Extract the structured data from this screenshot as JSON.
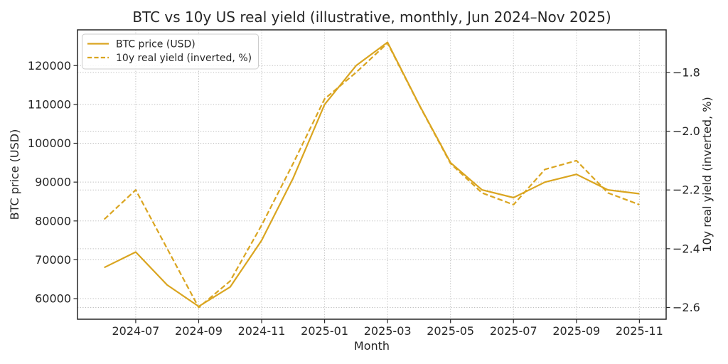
{
  "figure": {
    "title": "BTC vs 10y US real yield (illustrative, monthly, Jun 2024–Nov 2025)"
  },
  "chart_data": {
    "type": "line",
    "title": "BTC vs 10y US real yield (illustrative, monthly, Jun 2024–Nov 2025)",
    "xlabel": "Month",
    "x": [
      "2024-06",
      "2024-07",
      "2024-08",
      "2024-09",
      "2024-10",
      "2024-11",
      "2024-12",
      "2025-01",
      "2025-02",
      "2025-03",
      "2025-04",
      "2025-05",
      "2025-06",
      "2025-07",
      "2025-08",
      "2025-09",
      "2025-10",
      "2025-11"
    ],
    "x_tick_indices": [
      1,
      3,
      5,
      7,
      9,
      11,
      13,
      15,
      17
    ],
    "x_tick_labels": [
      "2024-07",
      "2024-09",
      "2024-11",
      "2025-01",
      "2025-03",
      "2025-05",
      "2025-07",
      "2025-09",
      "2025-11"
    ],
    "x_index_range": [
      -0.85,
      17.85
    ],
    "left_axis": {
      "label": "BTC price (USD)",
      "ticks": [
        60000,
        70000,
        80000,
        90000,
        100000,
        110000,
        120000
      ],
      "tick_labels": [
        "60000",
        "70000",
        "80000",
        "90000",
        "100000",
        "110000",
        "120000"
      ],
      "lim": [
        54700,
        129200
      ]
    },
    "right_axis": {
      "label": "10y real yield (inverted, %)",
      "ticks": [
        -1.8,
        -2.0,
        -2.2,
        -2.4,
        -2.6
      ],
      "tick_labels": [
        "−1.8",
        "−2.0",
        "−2.2",
        "−2.4",
        "−2.6"
      ],
      "lim": [
        -2.64,
        -1.655
      ]
    },
    "series": [
      {
        "name": "BTC price (USD)",
        "axis": "left",
        "style": "solid",
        "color": "#DAA520",
        "values": [
          68000,
          72000,
          63500,
          58000,
          63000,
          75000,
          91000,
          110000,
          120000,
          126000,
          110000,
          95000,
          88000,
          86000,
          90000,
          92000,
          88000,
          87000
        ]
      },
      {
        "name": "10y real yield (inverted, %)",
        "axis": "right",
        "style": "dashed",
        "color": "#DAA520",
        "values": [
          -2.3,
          -2.2,
          -2.4,
          -2.6,
          -2.51,
          -2.32,
          -2.11,
          -1.89,
          -1.8,
          -1.7,
          -1.91,
          -2.11,
          -2.21,
          -2.25,
          -2.13,
          -2.1,
          -2.21,
          -2.25
        ]
      }
    ],
    "legend": {
      "position": "upper left",
      "entries": [
        "BTC price (USD)",
        "10y real yield (inverted, %)"
      ]
    },
    "grid": {
      "show": true,
      "style": "dotted",
      "color": "#b0b0b0"
    },
    "spine_color": "#262626"
  }
}
